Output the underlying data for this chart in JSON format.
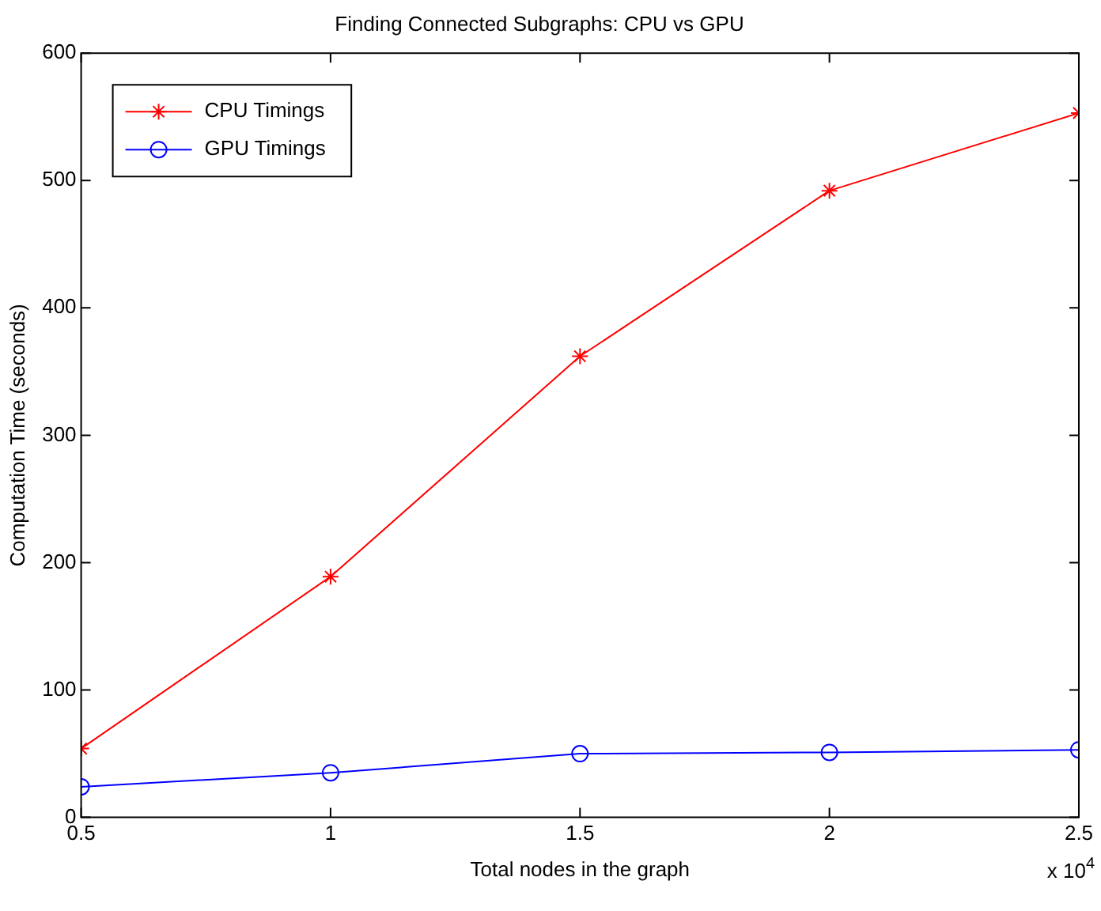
{
  "chart_data": {
    "type": "line",
    "title": "Finding Connected Subgraphs: CPU vs GPU",
    "xlabel": "Total nodes in the graph",
    "ylabel": "Computation Time (seconds)",
    "x": [
      0.5,
      1,
      1.5,
      2,
      2.5
    ],
    "series": [
      {
        "name": "CPU Timings",
        "color": "#ff0000",
        "marker": "cross",
        "values": [
          54,
          189,
          362,
          492,
          553
        ]
      },
      {
        "name": "GPU Timings",
        "color": "#0000ff",
        "marker": "circle",
        "values": [
          24,
          35,
          50,
          51,
          53
        ]
      }
    ],
    "xlim": [
      0.5,
      2.5
    ],
    "xticks": [
      {
        "value": 0.5,
        "label": "0.5"
      },
      1,
      1.5,
      2,
      2.5
    ],
    "ylim": [
      0,
      600
    ],
    "yticks": [
      0,
      100,
      200,
      300,
      400,
      500,
      600
    ],
    "grid": false,
    "legend": "top left",
    "line_style": "solid",
    "annotations": [
      "x 10$^{4}$"
    ]
  }
}
